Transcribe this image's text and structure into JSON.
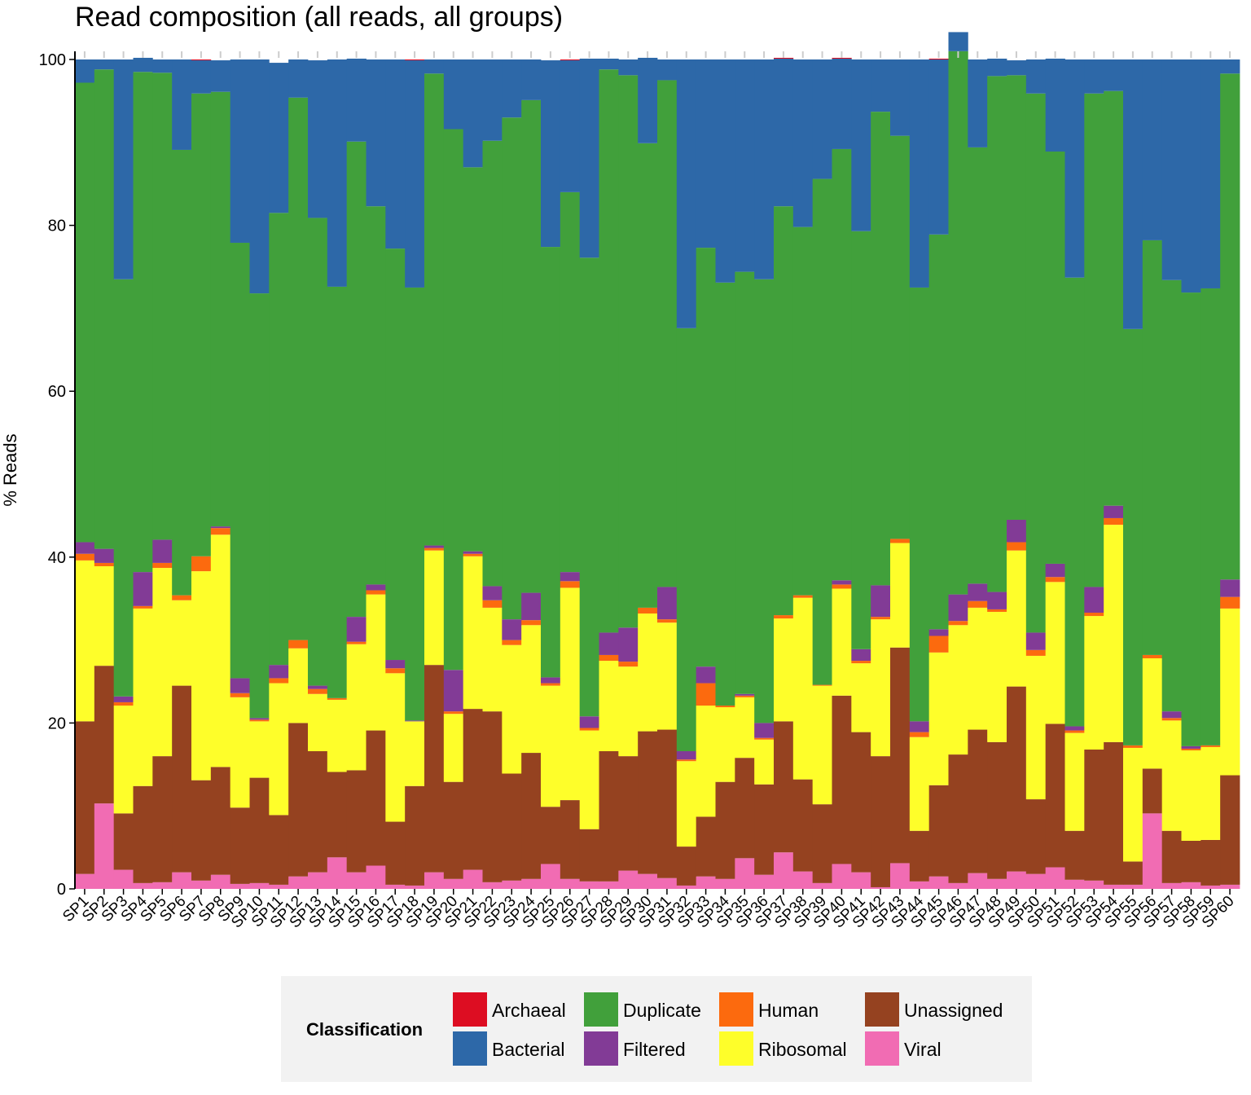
{
  "chart_data": {
    "type": "bar",
    "stacked": true,
    "title": "Read composition (all reads, all groups)",
    "ylabel": "% Reads",
    "xlabel": "",
    "ylim": [
      0,
      100
    ],
    "yticks": [
      0,
      20,
      40,
      60,
      80,
      100
    ],
    "categories": [
      "SP1",
      "SP2",
      "SP3",
      "SP4",
      "SP5",
      "SP6",
      "SP7",
      "SP8",
      "SP9",
      "SP10",
      "SP11",
      "SP12",
      "SP13",
      "SP14",
      "SP15",
      "SP16",
      "SP17",
      "SP18",
      "SP19",
      "SP20",
      "SP21",
      "SP22",
      "SP23",
      "SP24",
      "SP25",
      "SP26",
      "SP27",
      "SP28",
      "SP29",
      "SP30",
      "SP31",
      "SP32",
      "SP33",
      "SP34",
      "SP35",
      "SP36",
      "SP37",
      "SP38",
      "SP39",
      "SP40",
      "SP41",
      "SP42",
      "SP43",
      "SP44",
      "SP45",
      "SP46",
      "SP47",
      "SP48",
      "SP49",
      "SP50",
      "SP51",
      "SP52",
      "SP53",
      "SP54",
      "SP55",
      "SP56",
      "SP57",
      "SP58",
      "SP59",
      "SP60"
    ],
    "legend_title": "Classification",
    "legend_position": "bottom",
    "series": [
      {
        "name": "Viral",
        "color": "#f16cb3",
        "values": [
          1.8,
          10.3,
          2.3,
          0.7,
          0.8,
          2.0,
          1.0,
          1.7,
          0.6,
          0.7,
          0.5,
          1.5,
          2.0,
          3.8,
          2.0,
          2.8,
          0.5,
          0.4,
          2.0,
          1.2,
          2.3,
          0.8,
          1.0,
          1.2,
          3.0,
          1.2,
          0.9,
          0.9,
          2.2,
          1.8,
          1.3,
          0.4,
          1.5,
          1.2,
          3.7,
          1.7,
          4.4,
          2.1,
          0.7,
          3.0,
          2.0,
          0.2,
          3.1,
          0.9,
          1.5,
          0.7,
          1.9,
          1.2,
          2.1,
          1.8,
          2.6,
          1.1,
          1.0,
          0.5,
          0.5,
          9.1,
          0.7,
          0.8,
          0.4,
          0.5
        ]
      },
      {
        "name": "Unassigned",
        "color": "#954220",
        "values": [
          18.4,
          16.6,
          6.8,
          11.7,
          15.2,
          22.5,
          12.1,
          13.0,
          9.2,
          12.7,
          8.4,
          18.5,
          14.6,
          10.3,
          12.3,
          16.3,
          7.6,
          12.0,
          25.0,
          11.7,
          19.4,
          20.6,
          12.9,
          15.2,
          6.9,
          9.5,
          6.3,
          15.7,
          13.8,
          17.2,
          17.9,
          4.7,
          7.2,
          11.7,
          12.1,
          10.9,
          15.8,
          11.1,
          9.5,
          20.3,
          16.9,
          15.8,
          26.0,
          6.1,
          11.0,
          15.5,
          17.3,
          16.5,
          22.3,
          9.0,
          17.3,
          5.9,
          15.8,
          17.2,
          2.8,
          5.4,
          6.3,
          5.0,
          5.5,
          13.2
        ]
      },
      {
        "name": "Ribosomal",
        "color": "#fefe2a",
        "values": [
          19.4,
          12.0,
          13.0,
          21.4,
          22.7,
          10.3,
          25.2,
          28.0,
          13.3,
          6.8,
          15.9,
          9.0,
          6.9,
          8.7,
          15.2,
          16.4,
          17.9,
          7.8,
          13.8,
          8.2,
          18.4,
          12.5,
          15.5,
          15.4,
          14.6,
          25.6,
          11.9,
          10.9,
          10.8,
          14.2,
          12.9,
          10.3,
          13.4,
          9.0,
          7.3,
          5.4,
          12.4,
          21.9,
          14.3,
          12.9,
          8.3,
          16.5,
          12.6,
          11.3,
          16.0,
          15.6,
          14.7,
          15.7,
          16.4,
          17.3,
          17.1,
          11.8,
          16.1,
          26.2,
          13.7,
          13.3,
          13.3,
          10.9,
          11.2,
          20.1
        ]
      },
      {
        "name": "Human",
        "color": "#fc6a0e",
        "values": [
          0.8,
          0.4,
          0.4,
          0.3,
          0.6,
          0.6,
          1.8,
          0.8,
          0.5,
          0.2,
          0.6,
          1.0,
          0.6,
          0.2,
          0.3,
          0.5,
          0.6,
          0.0,
          0.3,
          0.3,
          0.3,
          0.9,
          0.6,
          0.6,
          0.3,
          0.8,
          0.3,
          0.7,
          0.6,
          0.7,
          0.4,
          0.2,
          2.7,
          0.2,
          0.2,
          0.2,
          0.4,
          0.3,
          0.1,
          0.5,
          0.3,
          0.3,
          0.5,
          0.6,
          2.0,
          0.5,
          0.8,
          0.3,
          1.0,
          0.7,
          0.6,
          0.3,
          0.4,
          0.8,
          0.3,
          0.4,
          0.3,
          0.2,
          0.2,
          1.4
        ]
      },
      {
        "name": "Filtered",
        "color": "#823b96",
        "values": [
          1.4,
          1.7,
          0.7,
          4.1,
          2.8,
          0.0,
          0.0,
          0.2,
          1.8,
          0.2,
          1.6,
          0.0,
          0.4,
          0.0,
          3.0,
          0.7,
          1.0,
          0.1,
          0.3,
          5.0,
          0.3,
          1.7,
          2.5,
          3.3,
          0.7,
          1.1,
          1.4,
          2.7,
          4.1,
          0.0,
          3.9,
          1.0,
          2.0,
          0.0,
          0.2,
          1.8,
          0.0,
          0.0,
          0.0,
          0.5,
          1.4,
          3.8,
          0.0,
          1.3,
          0.8,
          3.2,
          2.1,
          2.1,
          2.7,
          2.1,
          1.6,
          0.5,
          3.1,
          1.5,
          0.0,
          0.0,
          0.8,
          0.3,
          0.0,
          2.1
        ]
      },
      {
        "name": "Duplicate",
        "color": "#41a03b",
        "values": [
          55.4,
          57.8,
          50.3,
          60.3,
          56.3,
          53.7,
          55.8,
          52.4,
          52.5,
          51.2,
          54.5,
          65.4,
          56.4,
          49.6,
          57.3,
          45.6,
          49.6,
          52.2,
          56.9,
          65.2,
          46.3,
          53.7,
          60.5,
          59.4,
          51.9,
          45.8,
          55.3,
          67.9,
          66.6,
          56.0,
          61.1,
          51.0,
          50.5,
          51.0,
          50.9,
          53.5,
          49.3,
          44.4,
          61.0,
          52.0,
          50.4,
          57.1,
          48.6,
          52.3,
          47.6,
          65.5,
          52.6,
          62.2,
          53.6,
          65.0,
          49.7,
          54.1,
          59.5,
          50.0,
          50.2,
          50.0,
          52.0,
          54.7,
          55.1,
          61.0
        ]
      },
      {
        "name": "Bacterial",
        "color": "#2d68a8",
        "values": [
          2.8,
          1.2,
          26.5,
          1.7,
          1.6,
          10.9,
          4.0,
          3.8,
          22.1,
          28.2,
          18.1,
          4.6,
          19.0,
          27.4,
          10.0,
          17.7,
          22.8,
          27.4,
          1.7,
          8.4,
          13.0,
          9.8,
          7.0,
          4.9,
          22.5,
          15.9,
          24.0,
          1.3,
          1.9,
          10.3,
          2.5,
          32.4,
          22.7,
          26.9,
          25.6,
          26.5,
          17.8,
          20.2,
          14.4,
          10.9,
          20.7,
          6.3,
          9.2,
          27.5,
          21.1,
          2.3,
          10.6,
          2.1,
          1.8,
          4.1,
          11.2,
          26.3,
          4.1,
          3.8,
          32.5,
          21.8,
          26.6,
          28.1,
          27.6,
          1.7
        ]
      },
      {
        "name": "Archaeal",
        "color": "#dd0d22",
        "values": [
          0,
          0,
          0,
          0,
          0,
          0,
          0.1,
          0,
          0,
          0,
          0,
          0,
          0,
          0,
          0,
          0,
          0,
          0.1,
          0,
          0,
          0,
          0,
          0,
          0,
          0,
          0.1,
          0,
          0,
          0,
          0,
          0,
          0,
          0,
          0,
          0,
          0,
          0.1,
          0,
          0,
          0.1,
          0,
          0,
          0,
          0,
          0.1,
          0,
          0,
          0,
          0,
          0,
          0,
          0,
          0,
          0,
          0,
          0,
          0,
          0,
          0,
          0
        ]
      }
    ]
  },
  "legend": {
    "title": "Classification",
    "items": [
      {
        "label": "Archaeal",
        "color": "#dd0d22"
      },
      {
        "label": "Bacterial",
        "color": "#2d68a8"
      },
      {
        "label": "Duplicate",
        "color": "#41a03b"
      },
      {
        "label": "Filtered",
        "color": "#823b96"
      },
      {
        "label": "Human",
        "color": "#fc6a0e"
      },
      {
        "label": "Ribosomal",
        "color": "#fefe2a"
      },
      {
        "label": "Unassigned",
        "color": "#954220"
      },
      {
        "label": "Viral",
        "color": "#f16cb3"
      }
    ]
  }
}
